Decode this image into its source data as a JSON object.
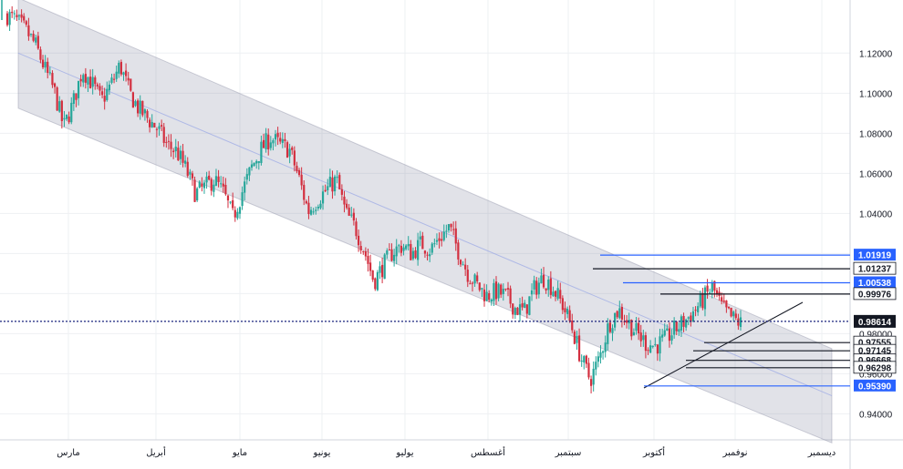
{
  "chart_data": {
    "type": "candlestick",
    "title": "",
    "xlabel": "",
    "ylabel": "",
    "ylim": [
      0.927,
      1.1465
    ],
    "y_ticks": [
      "1.12000",
      "1.10000",
      "1.08000",
      "1.06000",
      "1.04000",
      "1.02000",
      "1.00000",
      "0.98000",
      "0.96000",
      "0.94000"
    ],
    "y_tick_values": [
      1.12,
      1.1,
      1.08,
      1.06,
      1.04,
      1.02,
      1.0,
      0.98,
      0.96,
      0.94
    ],
    "x_months": [
      "مارس",
      "أبريل",
      "مايو",
      "يونيو",
      "يوليو",
      "أغسطس",
      "سبتمبر",
      "أكتوبر",
      "نوفمبر",
      "ديسمبر"
    ],
    "current_price": {
      "label": "0.98614",
      "value": 0.98614,
      "color": "#131722"
    },
    "levels": [
      {
        "label": "1.01919",
        "value": 1.01919,
        "style": "blue"
      },
      {
        "label": "1.01237",
        "value": 1.01237,
        "style": "black"
      },
      {
        "label": "1.00538",
        "value": 1.00538,
        "style": "blue"
      },
      {
        "label": "0.99976",
        "value": 0.99976,
        "style": "black"
      },
      {
        "label": "0.97555",
        "value": 0.97555,
        "style": "black"
      },
      {
        "label": "0.97145",
        "value": 0.97145,
        "style": "black"
      },
      {
        "label": "0.96668",
        "value": 0.96668,
        "style": "black"
      },
      {
        "label": "0.96298",
        "value": 0.96298,
        "style": "black"
      },
      {
        "label": "0.95390",
        "value": 0.9539,
        "style": "blue"
      }
    ],
    "channel": {
      "upper": [
        [
          0,
          1.1475
        ],
        [
          1.0,
          0.9725
        ]
      ],
      "lower": [
        [
          0,
          1.0925
        ],
        [
          1.0,
          0.9255
        ]
      ],
      "mid_color": "#9aa8e6"
    },
    "path": [
      1.139,
      1.136,
      1.131,
      1.124,
      1.112,
      1.101,
      1.083,
      1.095,
      1.112,
      1.105,
      1.096,
      1.104,
      1.114,
      1.1,
      1.092,
      1.087,
      1.082,
      1.074,
      1.071,
      1.062,
      1.05,
      1.053,
      1.057,
      1.05,
      1.038,
      1.051,
      1.063,
      1.072,
      1.078,
      1.074,
      1.072,
      1.058,
      1.041,
      1.047,
      1.052,
      1.057,
      1.04,
      1.033,
      1.021,
      1.006,
      1.014,
      1.021,
      1.024,
      1.02,
      1.025,
      1.022,
      1.028,
      1.033,
      1.021,
      1.01,
      1.004,
      0.999,
      1.001,
      0.999,
      0.993,
      0.991,
      1.002,
      1.008,
      1.003,
      0.995,
      0.984,
      0.968,
      0.957,
      0.968,
      0.985,
      0.992,
      0.986,
      0.98,
      0.975,
      0.974,
      0.977,
      0.982,
      0.986,
      0.991,
      0.997,
      1.003,
      0.993,
      0.988,
      0.985
    ],
    "colors": {
      "up": "#26a69a",
      "down": "#d32f3f",
      "blue_level": "#2962ff",
      "black_level": "#131722"
    }
  }
}
